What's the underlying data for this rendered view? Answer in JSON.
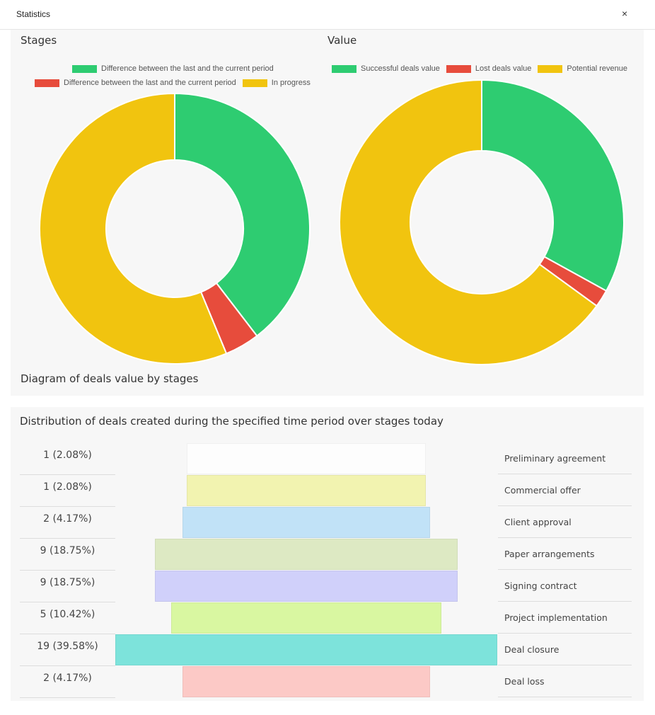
{
  "window": {
    "title": "Statistics",
    "close_label": "×"
  },
  "top_panel": {
    "footer": "Diagram of deals value by stages"
  },
  "chart_data": [
    {
      "type": "pie",
      "title": "Stages",
      "donut": true,
      "legend": [
        "Difference between the last and the current period",
        "Difference between the last and the current period",
        "In progress"
      ],
      "values": [
        19,
        2,
        27
      ],
      "colors": [
        "#2ecc71",
        "#e74c3c",
        "#f1c40f"
      ]
    },
    {
      "type": "pie",
      "title": "Value",
      "donut": true,
      "legend": [
        "Successful deals value",
        "Lost deals value",
        "Potential revenue"
      ],
      "values": [
        33,
        2,
        65
      ],
      "colors": [
        "#2ecc71",
        "#e74c3c",
        "#f1c40f"
      ]
    },
    {
      "type": "bar",
      "orientation": "funnel",
      "title": "Distribution of deals created during the specified time period over stages today",
      "categories": [
        "Preliminary agreement",
        "Commercial offer",
        "Client approval",
        "Paper arrangements",
        "Signing contract",
        "Project implementation",
        "Deal closure",
        "Deal loss"
      ],
      "values": [
        1,
        1,
        2,
        9,
        9,
        5,
        19,
        2
      ],
      "labels": [
        "1 (2.08%)",
        "1 (2.08%)",
        "2 (4.17%)",
        "9 (18.75%)",
        "9 (18.75%)",
        "5 (10.42%)",
        "19 (39.58%)",
        "2 (4.17%)"
      ],
      "colors": [
        "#fdfdfd",
        "#f2f3b0",
        "#c1e2f7",
        "#dde9c3",
        "#d0d0fa",
        "#d9f7a1",
        "#7de3db",
        "#fcc9c6"
      ]
    }
  ]
}
